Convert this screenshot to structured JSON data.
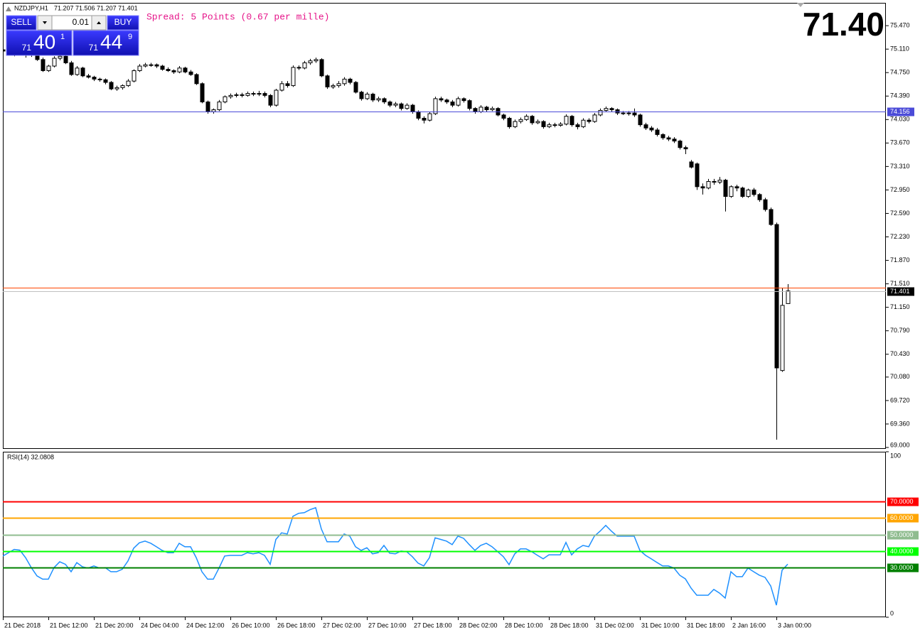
{
  "header": {
    "symbol": "NZDJPY,H1",
    "ohlc": "71.207 71.506 71.207 71.401"
  },
  "trade_panel": {
    "sell": "SELL",
    "buy": "BUY",
    "lot": "0.01",
    "sell_price": {
      "big": "71",
      "main": "40",
      "pip": "1"
    },
    "buy_price": {
      "big": "71",
      "main": "44",
      "pip": "9"
    }
  },
  "spread": "Spread: 5 Points (0.67 per mille)",
  "current_price": "71.40",
  "chart_data": [
    {
      "type": "candlestick",
      "up_color": "#ffffff",
      "down_color": "#000000",
      "ylim": [
        68.978,
        75.82
      ],
      "yticks": [
        {
          "value": 75.47,
          "label": "75.470"
        },
        {
          "value": 75.11,
          "label": "75.110"
        },
        {
          "value": 74.75,
          "label": "74.750"
        },
        {
          "value": 74.39,
          "label": "74.390"
        },
        {
          "value": 74.03,
          "label": "74.030"
        },
        {
          "value": 73.67,
          "label": "73.670"
        },
        {
          "value": 73.31,
          "label": "73.310"
        },
        {
          "value": 72.95,
          "label": "72.950"
        },
        {
          "value": 72.59,
          "label": "72.590"
        },
        {
          "value": 72.23,
          "label": "72.230"
        },
        {
          "value": 71.87,
          "label": "71.870"
        },
        {
          "value": 71.51,
          "label": "71.510"
        },
        {
          "value": 71.15,
          "label": "71.150"
        },
        {
          "value": 70.79,
          "label": "70.790"
        },
        {
          "value": 70.43,
          "label": "70.430"
        },
        {
          "value": 70.08,
          "label": "70.080"
        },
        {
          "value": 69.72,
          "label": "69.720"
        },
        {
          "value": 69.36,
          "label": "69.360"
        },
        {
          "value": 69,
          "label": "69.000"
        }
      ],
      "price_lines": [
        {
          "value": 74.156,
          "color": "#4b4bd8",
          "box": "#4b4bd8"
        },
        {
          "value": 71.449,
          "color": "#ff4500"
        },
        {
          "value": 71.401,
          "color": "#c0c0c0",
          "box": "#000000"
        }
      ],
      "ohlc": [
        [
          75.1,
          75.13,
          75.05,
          75.08
        ],
        [
          75.08,
          75.12,
          75.02,
          75.05
        ],
        [
          75.05,
          75.1,
          75.0,
          75.06
        ],
        [
          75.06,
          75.1,
          75.02,
          75.04
        ],
        [
          75.04,
          75.08,
          74.98,
          75.03
        ],
        [
          75.03,
          75.06,
          74.99,
          75.02
        ],
        [
          75.02,
          75.04,
          74.93,
          74.95
        ],
        [
          74.95,
          74.98,
          74.76,
          74.78
        ],
        [
          74.78,
          74.87,
          74.76,
          74.85
        ],
        [
          74.85,
          75.0,
          74.83,
          74.97
        ],
        [
          74.97,
          75.02,
          74.94,
          75.0
        ],
        [
          75.0,
          75.02,
          74.88,
          74.9
        ],
        [
          74.9,
          74.93,
          74.7,
          74.72
        ],
        [
          74.72,
          74.85,
          74.7,
          74.82
        ],
        [
          74.82,
          74.84,
          74.68,
          74.7
        ],
        [
          74.7,
          74.73,
          74.66,
          74.68
        ],
        [
          74.68,
          74.7,
          74.62,
          74.65
        ],
        [
          74.65,
          74.67,
          74.61,
          74.64
        ],
        [
          74.64,
          74.66,
          74.57,
          74.6
        ],
        [
          74.6,
          74.62,
          74.48,
          74.5
        ],
        [
          74.5,
          74.55,
          74.47,
          74.52
        ],
        [
          74.52,
          74.57,
          74.49,
          74.55
        ],
        [
          74.55,
          74.65,
          74.53,
          74.62
        ],
        [
          74.62,
          74.8,
          74.6,
          74.78
        ],
        [
          74.78,
          74.88,
          74.76,
          74.85
        ],
        [
          74.85,
          74.9,
          74.83,
          74.87
        ],
        [
          74.87,
          74.9,
          74.84,
          74.87
        ],
        [
          74.87,
          74.89,
          74.82,
          74.85
        ],
        [
          74.85,
          74.87,
          74.78,
          74.8
        ],
        [
          74.8,
          74.83,
          74.76,
          74.78
        ],
        [
          74.78,
          74.8,
          74.73,
          74.76
        ],
        [
          74.76,
          74.85,
          74.74,
          74.82
        ],
        [
          74.82,
          74.84,
          74.74,
          74.76
        ],
        [
          74.76,
          74.79,
          74.7,
          74.72
        ],
        [
          74.72,
          74.74,
          74.56,
          74.58
        ],
        [
          74.58,
          74.6,
          74.28,
          74.3
        ],
        [
          74.3,
          74.32,
          74.12,
          74.15
        ],
        [
          74.15,
          74.2,
          74.12,
          74.18
        ],
        [
          74.18,
          74.33,
          74.16,
          74.3
        ],
        [
          74.3,
          74.4,
          74.28,
          74.38
        ],
        [
          74.38,
          74.43,
          74.35,
          74.4
        ],
        [
          74.4,
          74.44,
          74.37,
          74.41
        ],
        [
          74.41,
          74.44,
          74.37,
          74.4
        ],
        [
          74.4,
          74.46,
          74.38,
          74.43
        ],
        [
          74.43,
          74.46,
          74.39,
          74.42
        ],
        [
          74.42,
          74.47,
          74.39,
          74.43
        ],
        [
          74.43,
          74.46,
          74.37,
          74.4
        ],
        [
          74.4,
          74.42,
          74.22,
          74.25
        ],
        [
          74.25,
          74.5,
          74.23,
          74.48
        ],
        [
          74.48,
          74.62,
          74.46,
          74.58
        ],
        [
          74.58,
          74.62,
          74.52,
          74.55
        ],
        [
          74.55,
          74.86,
          74.53,
          74.83
        ],
        [
          74.83,
          74.86,
          74.79,
          74.82
        ],
        [
          74.82,
          74.93,
          74.8,
          74.9
        ],
        [
          74.9,
          74.96,
          74.87,
          74.93
        ],
        [
          74.93,
          74.98,
          74.9,
          74.95
        ],
        [
          74.95,
          74.97,
          74.68,
          74.7
        ],
        [
          74.7,
          74.72,
          74.5,
          74.53
        ],
        [
          74.53,
          74.58,
          74.5,
          74.55
        ],
        [
          74.55,
          74.62,
          74.52,
          74.58
        ],
        [
          74.58,
          74.68,
          74.55,
          74.65
        ],
        [
          74.65,
          74.67,
          74.57,
          74.6
        ],
        [
          74.6,
          74.62,
          74.43,
          74.45
        ],
        [
          74.45,
          74.47,
          74.32,
          74.35
        ],
        [
          74.35,
          74.45,
          74.33,
          74.42
        ],
        [
          74.42,
          74.44,
          74.3,
          74.33
        ],
        [
          74.33,
          74.38,
          74.3,
          74.35
        ],
        [
          74.35,
          74.37,
          74.27,
          74.3
        ],
        [
          74.3,
          74.32,
          74.22,
          74.25
        ],
        [
          74.25,
          74.3,
          74.22,
          74.27
        ],
        [
          74.27,
          74.29,
          74.17,
          74.2
        ],
        [
          74.2,
          74.28,
          74.18,
          74.25
        ],
        [
          74.25,
          74.27,
          74.12,
          74.15
        ],
        [
          74.15,
          74.17,
          74.02,
          74.05
        ],
        [
          74.05,
          74.08,
          73.97,
          74.02
        ],
        [
          74.02,
          74.15,
          74.0,
          74.12
        ],
        [
          74.12,
          74.38,
          74.1,
          74.35
        ],
        [
          74.35,
          74.38,
          74.3,
          74.33
        ],
        [
          74.33,
          74.35,
          74.27,
          74.3
        ],
        [
          74.3,
          74.33,
          74.22,
          74.25
        ],
        [
          74.25,
          74.38,
          74.23,
          74.35
        ],
        [
          74.35,
          74.37,
          74.29,
          74.32
        ],
        [
          74.32,
          74.34,
          74.17,
          74.2
        ],
        [
          74.2,
          74.22,
          74.12,
          74.15
        ],
        [
          74.15,
          74.25,
          74.13,
          74.22
        ],
        [
          74.22,
          74.24,
          74.15,
          74.18
        ],
        [
          74.18,
          74.23,
          74.16,
          74.2
        ],
        [
          74.2,
          74.22,
          74.08,
          74.1
        ],
        [
          74.1,
          74.12,
          74.02,
          74.05
        ],
        [
          74.05,
          74.07,
          73.89,
          73.92
        ],
        [
          73.92,
          74.03,
          73.9,
          74.0
        ],
        [
          74.0,
          74.06,
          73.97,
          74.03
        ],
        [
          74.03,
          74.11,
          74.01,
          74.08
        ],
        [
          74.08,
          74.1,
          73.95,
          73.98
        ],
        [
          73.98,
          74.03,
          73.96,
          74.0
        ],
        [
          74.0,
          74.02,
          73.89,
          73.92
        ],
        [
          73.92,
          73.98,
          73.9,
          73.95
        ],
        [
          73.95,
          73.98,
          73.91,
          73.94
        ],
        [
          73.94,
          73.99,
          73.92,
          73.96
        ],
        [
          73.96,
          74.11,
          73.94,
          74.08
        ],
        [
          74.08,
          74.1,
          73.92,
          73.95
        ],
        [
          73.95,
          73.98,
          73.88,
          73.92
        ],
        [
          73.92,
          74.05,
          73.9,
          74.02
        ],
        [
          74.02,
          74.05,
          73.97,
          74.0
        ],
        [
          74.0,
          74.13,
          73.98,
          74.1
        ],
        [
          74.1,
          74.2,
          74.08,
          74.17
        ],
        [
          74.17,
          74.23,
          74.15,
          74.2
        ],
        [
          74.2,
          74.22,
          74.15,
          74.18
        ],
        [
          74.18,
          74.2,
          74.1,
          74.13
        ],
        [
          74.13,
          74.16,
          74.1,
          74.12
        ],
        [
          74.12,
          74.16,
          74.09,
          74.13
        ],
        [
          74.13,
          74.2,
          74.07,
          74.1
        ],
        [
          74.1,
          74.12,
          73.92,
          73.95
        ],
        [
          73.95,
          73.98,
          73.87,
          73.9
        ],
        [
          73.9,
          73.93,
          73.84,
          73.87
        ],
        [
          73.87,
          73.9,
          73.77,
          73.8
        ],
        [
          73.8,
          73.82,
          73.72,
          73.75
        ],
        [
          73.75,
          73.78,
          73.7,
          73.73
        ],
        [
          73.73,
          73.76,
          73.67,
          73.7
        ],
        [
          73.7,
          73.72,
          73.57,
          73.6
        ],
        [
          73.6,
          73.63,
          73.5,
          73.58
        ],
        [
          73.38,
          73.41,
          73.28,
          73.3
        ],
        [
          73.35,
          73.37,
          72.95,
          73.0
        ],
        [
          73.0,
          73.05,
          72.88,
          72.98
        ],
        [
          72.98,
          73.12,
          72.96,
          73.08
        ],
        [
          73.08,
          73.12,
          73.03,
          73.07
        ],
        [
          73.07,
          73.15,
          73.04,
          73.1
        ],
        [
          73.1,
          73.12,
          72.62,
          72.85
        ],
        [
          72.85,
          73.02,
          72.83,
          73.0
        ],
        [
          73.0,
          73.03,
          72.93,
          72.98
        ],
        [
          72.98,
          73.0,
          72.83,
          72.85
        ],
        [
          72.85,
          72.97,
          72.83,
          72.95
        ],
        [
          72.95,
          72.98,
          72.85,
          72.88
        ],
        [
          72.88,
          72.9,
          72.77,
          72.8
        ],
        [
          72.8,
          72.83,
          72.62,
          72.65
        ],
        [
          72.65,
          72.68,
          72.4,
          72.42
        ],
        [
          72.42,
          72.45,
          69.12,
          70.22
        ],
        [
          70.18,
          71.45,
          70.16,
          71.18
        ],
        [
          71.207,
          71.506,
          71.207,
          71.401
        ]
      ]
    },
    {
      "type": "line",
      "title": "RSI(14) 32.0808",
      "color": "#1e90ff",
      "ylim": [
        0,
        100
      ],
      "yticks": [
        0,
        100
      ],
      "levels": [
        {
          "value": 70,
          "label": "70.0000",
          "color": "#ff0000"
        },
        {
          "value": 60,
          "label": "60.0000",
          "color": "#ffa500"
        },
        {
          "value": 50,
          "label": "50.0000",
          "color": "#8fbc8f"
        },
        {
          "value": 40,
          "label": "40.0000",
          "color": "#00ff00"
        },
        {
          "value": 30,
          "label": "30.0000",
          "color": "#008000"
        }
      ],
      "categories": [
        "21 Dec 2018",
        null,
        null,
        null,
        null,
        null,
        null,
        null,
        "21 Dec 12:00",
        null,
        null,
        null,
        null,
        null,
        null,
        null,
        "21 Dec 20:00",
        null,
        null,
        null,
        null,
        null,
        null,
        null,
        "24 Dec 04:00",
        null,
        null,
        null,
        null,
        null,
        null,
        null,
        "24 Dec 12:00",
        null,
        null,
        null,
        null,
        null,
        null,
        null,
        "26 Dec 10:00",
        null,
        null,
        null,
        null,
        null,
        null,
        null,
        "26 Dec 18:00",
        null,
        null,
        null,
        null,
        null,
        null,
        null,
        "27 Dec 02:00",
        null,
        null,
        null,
        null,
        null,
        null,
        null,
        "27 Dec 10:00",
        null,
        null,
        null,
        null,
        null,
        null,
        null,
        "27 Dec 18:00",
        null,
        null,
        null,
        null,
        null,
        null,
        null,
        "28 Dec 02:00",
        null,
        null,
        null,
        null,
        null,
        null,
        null,
        "28 Dec 10:00",
        null,
        null,
        null,
        null,
        null,
        null,
        null,
        "28 Dec 18:00",
        null,
        null,
        null,
        null,
        null,
        null,
        null,
        "31 Dec 02:00",
        null,
        null,
        null,
        null,
        null,
        null,
        null,
        "31 Dec 10:00",
        null,
        null,
        null,
        null,
        null,
        null,
        null,
        "31 Dec 18:00",
        null,
        null,
        null,
        null,
        null,
        null,
        null,
        "2 Jan 16:00",
        null,
        null,
        null,
        null,
        null,
        null,
        null,
        "3 Jan 00:00",
        null,
        null
      ],
      "values": [
        37,
        39,
        41,
        40.5,
        36,
        30,
        25,
        23,
        23,
        30,
        33.5,
        32,
        27.5,
        33,
        30.5,
        29.7,
        31,
        29.7,
        30,
        27.5,
        27.5,
        29,
        34,
        41.7,
        45,
        46,
        44.7,
        42.6,
        40.4,
        39,
        39,
        44.7,
        42.6,
        42.6,
        36,
        27.5,
        23,
        23,
        29.7,
        37,
        37.4,
        37.4,
        37.4,
        39,
        38.3,
        39,
        37.4,
        32,
        47,
        51,
        50.3,
        61,
        62.8,
        63.2,
        65,
        66.2,
        53.3,
        45.6,
        45.6,
        45.6,
        50.3,
        49,
        42.6,
        40.4,
        42,
        38.3,
        39,
        43.4,
        38.7,
        38.3,
        40,
        39.6,
        36.6,
        32.7,
        31,
        36,
        48,
        47,
        46,
        43.9,
        49,
        47.7,
        43.9,
        40.4,
        43.4,
        44.7,
        42.6,
        39.6,
        36.6,
        31.8,
        38.3,
        41.3,
        41.3,
        39.6,
        37.4,
        35.3,
        37.7,
        37.7,
        37.7,
        45.2,
        37.7,
        41.3,
        43.4,
        42.6,
        49,
        52,
        55.5,
        52,
        49,
        49,
        49,
        49,
        40.4,
        37.4,
        35.3,
        33.1,
        31,
        31,
        29.7,
        25.4,
        23.2,
        17.6,
        13.3,
        13.3,
        13.3,
        16.8,
        14.6,
        11.6,
        27.5,
        24.5,
        24.5,
        29.7,
        27.5,
        25.4,
        24.1,
        18.9,
        7.3,
        28.4,
        32.0808
      ]
    }
  ]
}
